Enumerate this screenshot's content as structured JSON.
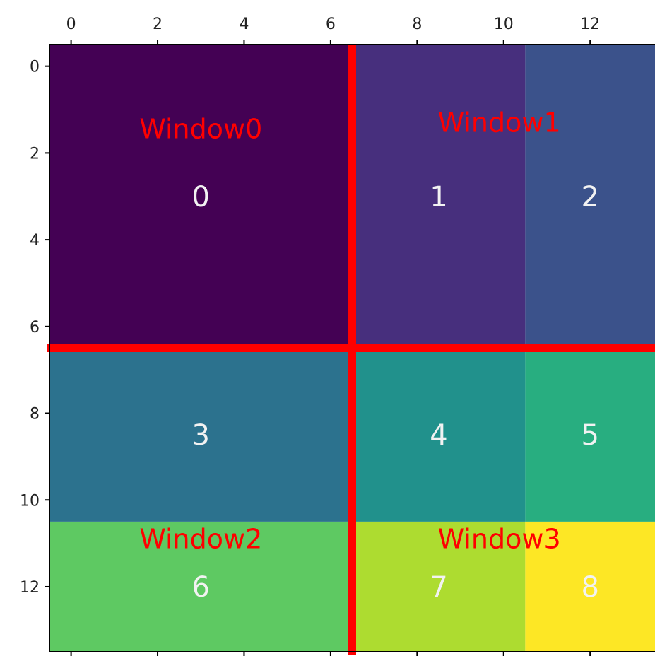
{
  "chart_data": {
    "type": "heatmap",
    "title": "",
    "xlabel": "",
    "ylabel": "",
    "x_ticks": [
      "0",
      "2",
      "4",
      "6",
      "8",
      "10",
      "12"
    ],
    "y_ticks": [
      "0",
      "2",
      "4",
      "6",
      "8",
      "10",
      "12"
    ],
    "xlim": [
      -0.5,
      13.5
    ],
    "ylim": [
      13.5,
      -0.5
    ],
    "colormap": "viridis",
    "cells": [
      {
        "label": "0",
        "value": 0,
        "x0": -0.5,
        "x1": 6.5,
        "y0": -0.5,
        "y1": 6.5,
        "color": "#440154"
      },
      {
        "label": "1",
        "value": 1,
        "x0": 6.5,
        "x1": 10.5,
        "y0": -0.5,
        "y1": 6.5,
        "color": "#472f7d"
      },
      {
        "label": "2",
        "value": 2,
        "x0": 10.5,
        "x1": 13.5,
        "y0": -0.5,
        "y1": 6.5,
        "color": "#3b528b"
      },
      {
        "label": "3",
        "value": 3,
        "x0": -0.5,
        "x1": 6.5,
        "y0": 6.5,
        "y1": 10.5,
        "color": "#2c728e"
      },
      {
        "label": "4",
        "value": 4,
        "x0": 6.5,
        "x1": 10.5,
        "y0": 6.5,
        "y1": 10.5,
        "color": "#21918c"
      },
      {
        "label": "5",
        "value": 5,
        "x0": 10.5,
        "x1": 13.5,
        "y0": 6.5,
        "y1": 10.5,
        "color": "#28ae80"
      },
      {
        "label": "6",
        "value": 6,
        "x0": -0.5,
        "x1": 6.5,
        "y0": 10.5,
        "y1": 13.5,
        "color": "#5ec962"
      },
      {
        "label": "7",
        "value": 7,
        "x0": 6.5,
        "x1": 10.5,
        "y0": 10.5,
        "y1": 13.5,
        "color": "#addc30"
      },
      {
        "label": "8",
        "value": 8,
        "x0": 10.5,
        "x1": 13.5,
        "y0": 10.5,
        "y1": 13.5,
        "color": "#fde725"
      }
    ],
    "divider_lines": {
      "x": 6.5,
      "y": 6.5,
      "color": "#ff0000"
    },
    "window_labels": [
      {
        "text": "Window0",
        "x": 3.0,
        "y": 1.45
      },
      {
        "text": "Window1",
        "x": 9.9,
        "y": 1.3
      },
      {
        "text": "Window2",
        "x": 3.0,
        "y": 10.9
      },
      {
        "text": "Window3",
        "x": 9.9,
        "y": 10.9
      }
    ],
    "annotation_color": "#ff0000",
    "grid": false,
    "legend": "none"
  }
}
